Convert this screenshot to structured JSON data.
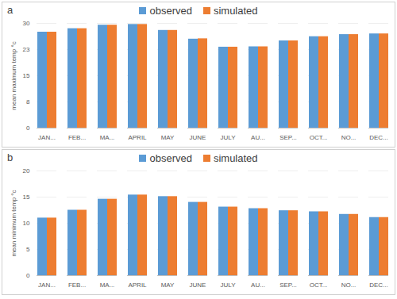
{
  "chart_data": [
    {
      "type": "bar",
      "title": "a",
      "y_label": "mean maximum temp °c",
      "categories": [
        "JAN...",
        "FEB...",
        "MA...",
        "APRIL",
        "MAY",
        "JUNE",
        "JULY",
        "AU...",
        "SEP...",
        "OCT...",
        "NO...",
        "DEC..."
      ],
      "series": [
        {
          "name": "observed",
          "color": "#5b9bd5",
          "values": [
            27.5,
            28.5,
            29.5,
            29.7,
            28.0,
            25.5,
            23.2,
            23.3,
            25.0,
            26.2,
            26.8,
            27.0
          ]
        },
        {
          "name": "simulated",
          "color": "#ed7d31",
          "values": [
            27.5,
            28.5,
            29.5,
            29.7,
            28.0,
            25.6,
            23.2,
            23.3,
            25.0,
            26.2,
            26.8,
            27.0
          ]
        }
      ],
      "ylim": [
        0,
        30
      ],
      "yticks": [
        0,
        {
          "value": 7.5,
          "label": "8"
        },
        15,
        {
          "value": 22.5,
          "label": "23"
        },
        30
      ],
      "grid": true,
      "legend": "top"
    },
    {
      "type": "bar",
      "title": "b",
      "y_label": "mean minimum temp °c",
      "categories": [
        "JAN...",
        "FEB...",
        "MA...",
        "APRIL",
        "MAY",
        "JUNE",
        "JULY",
        "AU...",
        "SEP...",
        "OCT...",
        "NO...",
        "DEC..."
      ],
      "series": [
        {
          "name": "observed",
          "color": "#5b9bd5",
          "values": [
            11.0,
            12.5,
            14.6,
            15.4,
            15.1,
            14.0,
            13.1,
            12.8,
            12.4,
            12.2,
            11.7,
            11.1
          ]
        },
        {
          "name": "simulated",
          "color": "#ed7d31",
          "values": [
            11.0,
            12.5,
            14.6,
            15.4,
            15.1,
            14.0,
            13.1,
            12.8,
            12.4,
            12.2,
            11.7,
            11.1
          ]
        }
      ],
      "ylim": [
        0,
        20
      ],
      "yticks": [
        0,
        5,
        10,
        15,
        20
      ],
      "grid": true,
      "legend": "top"
    }
  ]
}
